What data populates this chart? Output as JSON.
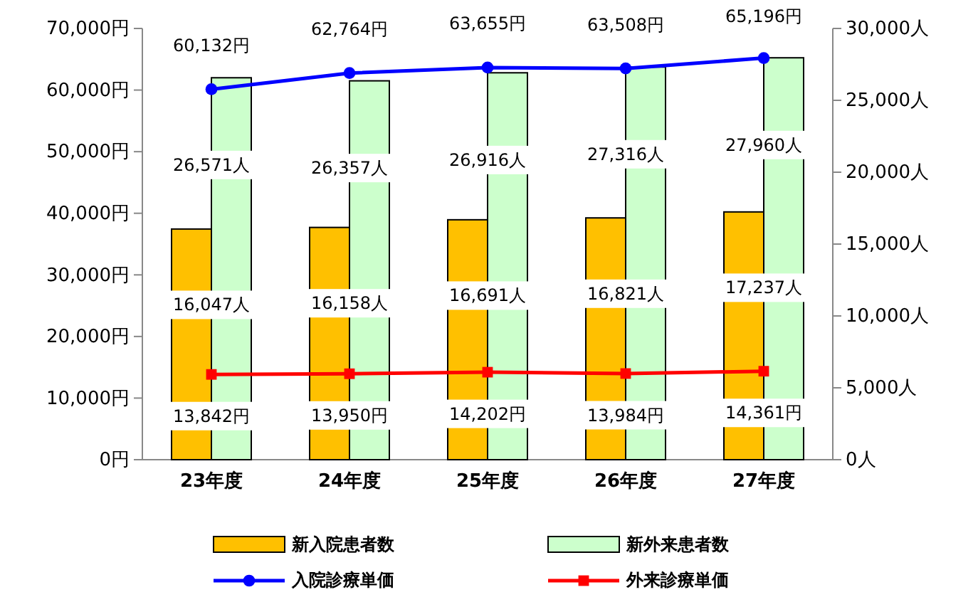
{
  "chart_data": {
    "type": "bar",
    "categories": [
      "23年度",
      "24年度",
      "25年度",
      "26年度",
      "27年度"
    ],
    "series": [
      {
        "name": "新入院患者数",
        "axis": "y2",
        "color": "#ffc000",
        "values": [
          16047,
          16158,
          16691,
          16821,
          17237
        ],
        "value_labels": [
          "16,047人",
          "16,158人",
          "16,691人",
          "16,821人",
          "17,237人"
        ]
      },
      {
        "name": "新外来患者数",
        "axis": "y2",
        "color": "#ccffcc",
        "values": [
          26571,
          26357,
          26916,
          27316,
          27960
        ],
        "value_labels": [
          "26,571人",
          "26,357人",
          "26,916人",
          "27,316人",
          "27,960人"
        ]
      },
      {
        "name": "入院診療単価",
        "type": "line",
        "color": "#0000ff",
        "marker": "circle",
        "values": [
          60132,
          62764,
          63655,
          63508,
          65196
        ],
        "value_labels": [
          "60,132円",
          "62,764円",
          "63,655円",
          "63,508円",
          "65,196円"
        ]
      },
      {
        "name": "外来診療単価",
        "type": "line",
        "color": "#ff0000",
        "marker": "square",
        "values": [
          13842,
          13950,
          14202,
          13984,
          14361
        ],
        "value_labels": [
          "13,842円",
          "13,950円",
          "14,202円",
          "13,984円",
          "14,361円"
        ]
      }
    ],
    "ylim": [
      0,
      70000
    ],
    "yticks": [
      {
        "value": 0,
        "label": "0円"
      },
      {
        "value": 10000,
        "label": "10,000円"
      },
      {
        "value": 20000,
        "label": "20,000円"
      },
      {
        "value": 30000,
        "label": "30,000円"
      },
      {
        "value": 40000,
        "label": "40,000円"
      },
      {
        "value": 50000,
        "label": "50,000円"
      },
      {
        "value": 60000,
        "label": "60,000円"
      },
      {
        "value": 70000,
        "label": "70,000円"
      }
    ],
    "y2lim": [
      0,
      30000
    ],
    "y2ticks": [
      {
        "value": 0,
        "label": "0人"
      },
      {
        "value": 5000,
        "label": "5,000人"
      },
      {
        "value": 10000,
        "label": "10,000人"
      },
      {
        "value": 15000,
        "label": "15,000人"
      },
      {
        "value": 20000,
        "label": "20,000人"
      },
      {
        "value": 25000,
        "label": "25,000人"
      },
      {
        "value": 30000,
        "label": "30,000人"
      }
    ],
    "grid": false,
    "legend": "bottom"
  }
}
